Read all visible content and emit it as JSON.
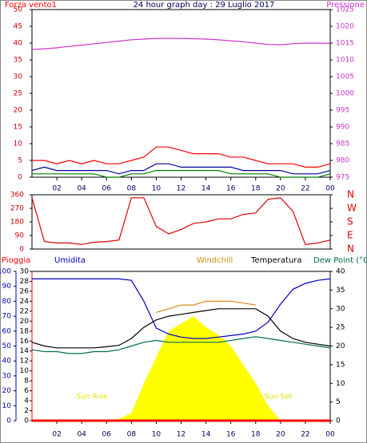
{
  "chart_data": [
    {
      "type": "line",
      "title": "24 hour graph day : 29 Luglio 2017",
      "ylabel": "Forza vento1",
      "y2label": "Pressione",
      "x": [
        0,
        1,
        2,
        3,
        4,
        5,
        6,
        7,
        8,
        9,
        10,
        11,
        12,
        13,
        14,
        15,
        16,
        17,
        18,
        19,
        20,
        21,
        22,
        23,
        24
      ],
      "xlim": [
        0,
        24
      ],
      "xticks": [
        {
          "value": 2,
          "label": "02"
        },
        {
          "value": 4,
          "label": "04"
        },
        {
          "value": 6,
          "label": "06"
        },
        {
          "value": 8,
          "label": "08"
        },
        10,
        12,
        14,
        16,
        18,
        20,
        22,
        {
          "value": 24,
          "label": "00"
        }
      ],
      "ylim": [
        0,
        50
      ],
      "yticks": [
        0,
        5,
        10,
        15,
        20,
        25,
        30,
        35,
        40,
        45,
        50
      ],
      "y2lim": [
        975,
        1025
      ],
      "y2ticks": [
        975,
        980,
        985,
        990,
        995,
        1000,
        1005,
        1010,
        1015,
        1020,
        1025
      ],
      "series": [
        {
          "color": "#ff0000",
          "values": [
            5,
            5,
            4,
            5,
            4,
            5,
            4,
            4,
            5,
            6,
            9,
            9,
            8,
            7,
            7,
            7,
            6,
            6,
            5,
            4,
            4,
            4,
            3,
            3,
            4
          ]
        },
        {
          "color": "#0000a0",
          "values": [
            2,
            3,
            2,
            2,
            2,
            2,
            2,
            1,
            2,
            2,
            4,
            4,
            3,
            3,
            3,
            3,
            3,
            2,
            2,
            2,
            2,
            1,
            1,
            1,
            2
          ]
        },
        {
          "color": "#008000",
          "values": [
            1,
            1,
            1,
            1,
            1,
            1,
            0,
            0,
            1,
            1,
            2,
            2,
            2,
            2,
            2,
            2,
            1,
            1,
            1,
            1,
            0,
            0,
            0,
            0,
            1
          ]
        },
        {
          "color": "#cc33cc",
          "axis": "y2",
          "values": [
            1013.1,
            1013.3,
            1013.6,
            1014,
            1014.4,
            1014.8,
            1015.2,
            1015.6,
            1016,
            1016.2,
            1016.4,
            1016.4,
            1016.4,
            1016.3,
            1016.2,
            1016,
            1015.7,
            1015.4,
            1015,
            1014.6,
            1014.5,
            1014.8,
            1015,
            1015,
            1014.9
          ]
        }
      ]
    },
    {
      "type": "line",
      "x": [
        0,
        1,
        2,
        3,
        4,
        5,
        6,
        7,
        8,
        9,
        10,
        11,
        12,
        13,
        14,
        15,
        16,
        17,
        18,
        19,
        20,
        21,
        22,
        23,
        24
      ],
      "xlim": [
        0,
        24
      ],
      "ylim": [
        0,
        360
      ],
      "yticks": [
        0,
        90,
        180,
        270,
        360
      ],
      "y2lim": [
        0,
        360
      ],
      "y2ticks": [
        {
          "value": 0,
          "label": "N"
        },
        {
          "value": 90,
          "label": "E"
        },
        {
          "value": 180,
          "label": "S"
        },
        {
          "value": 270,
          "label": "W"
        },
        {
          "value": 360,
          "label": "N"
        }
      ],
      "series": [
        {
          "color": "#dd0000",
          "values": [
            340,
            50,
            40,
            40,
            30,
            45,
            50,
            60,
            340,
            340,
            150,
            100,
            130,
            170,
            180,
            200,
            200,
            230,
            240,
            330,
            340,
            250,
            30,
            40,
            60
          ]
        }
      ]
    },
    {
      "type": "line",
      "x": [
        0,
        1,
        2,
        3,
        4,
        5,
        6,
        7,
        8,
        9,
        10,
        11,
        12,
        13,
        14,
        15,
        16,
        17,
        18,
        19,
        20,
        21,
        22,
        23,
        24
      ],
      "xlim": [
        0,
        24
      ],
      "xticks": [
        {
          "value": 2,
          "label": "02"
        },
        {
          "value": 4,
          "label": "04"
        },
        {
          "value": 6,
          "label": "06"
        },
        {
          "value": 8,
          "label": "08"
        },
        10,
        12,
        14,
        16,
        18,
        20,
        22,
        {
          "value": 24,
          "label": "00"
        }
      ],
      "ylim": [
        0,
        30
      ],
      "yticks": [
        0,
        2,
        4,
        6,
        8,
        10,
        12,
        14,
        16,
        18,
        20,
        22,
        24,
        26,
        28,
        30
      ],
      "y2lim": [
        0,
        40
      ],
      "y2ticks": [
        0,
        5,
        10,
        15,
        20,
        25,
        30,
        35,
        40
      ],
      "y3lim": [
        0,
        100
      ],
      "y3ticks": [
        0,
        10,
        20,
        30,
        40,
        50,
        60,
        70,
        80,
        90,
        100
      ],
      "annotations": [
        "Sun Rise",
        "Sun Set"
      ],
      "series": [
        {
          "color": "#ffff00",
          "axis": "y2",
          "area": true,
          "values": [
            0,
            0,
            0,
            0,
            0,
            0,
            0,
            0.5,
            2,
            10,
            17,
            24,
            26,
            28,
            25,
            23,
            20,
            15,
            10,
            4,
            0,
            0,
            0,
            0,
            0
          ]
        },
        {
          "name": "Pioggia",
          "color": "#ff0000",
          "values": [
            0,
            0,
            0,
            0,
            0,
            0,
            0,
            0,
            0,
            0,
            0,
            0,
            0,
            0,
            0,
            0,
            0,
            0,
            0,
            0,
            0,
            0,
            0,
            0,
            0
          ]
        },
        {
          "name": "Umidita",
          "color": "#0000c0",
          "axis": "y3",
          "values": [
            95,
            95,
            95,
            95,
            95,
            95,
            95,
            95,
            94,
            80,
            62,
            58,
            56,
            55,
            55,
            56,
            57,
            58,
            60,
            66,
            78,
            88,
            92,
            94,
            95
          ]
        },
        {
          "name": "Windchill",
          "color": "#d98c1a",
          "axis": "y2",
          "values": [
            null,
            null,
            null,
            null,
            null,
            null,
            null,
            null,
            null,
            null,
            29,
            30,
            31,
            31,
            32,
            32,
            32,
            31.5,
            31,
            null,
            null,
            null,
            null,
            null,
            null
          ]
        },
        {
          "name": "Temperatura",
          "color": "#000000",
          "axis": "y2",
          "values": [
            21,
            20,
            19.5,
            19.5,
            19.5,
            19.5,
            19.8,
            20.2,
            22,
            25,
            27,
            28,
            28.5,
            29,
            29.5,
            30,
            30,
            30,
            30,
            28,
            24,
            22,
            21,
            20.5,
            20
          ]
        },
        {
          "name": "Dew Point (°C",
          "color": "#007040",
          "axis": "y2",
          "values": [
            19,
            18.5,
            18.5,
            18,
            18,
            18.5,
            18.5,
            19,
            20,
            21,
            21.5,
            21,
            21,
            21,
            21,
            21,
            21.5,
            22,
            22.5,
            22,
            21.5,
            21,
            20.5,
            20,
            19.5
          ]
        }
      ]
    }
  ]
}
